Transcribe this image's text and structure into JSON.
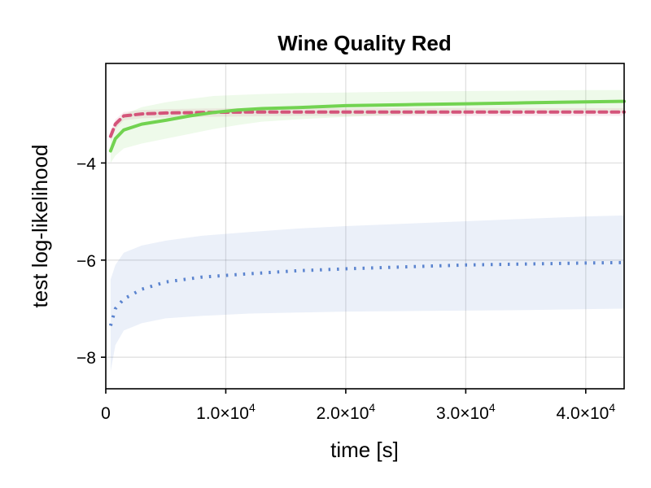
{
  "chart_data": {
    "type": "line",
    "title": "Wine Quality Red",
    "xlabel": "time [s]",
    "ylabel": "test log-likelihood",
    "xlim": [
      0,
      43200
    ],
    "ylim": [
      -8.65,
      -1.95
    ],
    "x_ticks": [
      0,
      10000,
      20000,
      30000,
      40000
    ],
    "x_tick_labels": [
      {
        "mantissa": "0",
        "exponent": ""
      },
      {
        "mantissa": "1.0×10",
        "exponent": "4"
      },
      {
        "mantissa": "2.0×10",
        "exponent": "4"
      },
      {
        "mantissa": "3.0×10",
        "exponent": "4"
      },
      {
        "mantissa": "4.0×10",
        "exponent": "4"
      }
    ],
    "y_ticks": [
      -8,
      -6,
      -4
    ],
    "y_tick_labels": [
      "−8",
      "−6",
      "−4"
    ],
    "grid": true,
    "legend": false,
    "series": [
      {
        "style": "dotted",
        "color": "#5b84cf",
        "band_color": "#5b84cf",
        "x": [
          400,
          800,
          1500,
          3000,
          5000,
          8000,
          12000,
          16000,
          20000,
          25000,
          30000,
          35000,
          40000,
          43200
        ],
        "y": [
          -7.35,
          -7.0,
          -6.8,
          -6.6,
          -6.45,
          -6.35,
          -6.28,
          -6.22,
          -6.18,
          -6.14,
          -6.1,
          -6.08,
          -6.06,
          -6.05
        ],
        "lower": [
          -8.3,
          -7.75,
          -7.45,
          -7.3,
          -7.2,
          -7.15,
          -7.1,
          -7.08,
          -7.06,
          -7.05,
          -7.04,
          -7.03,
          -7.01,
          -7.0
        ],
        "upper": [
          -6.4,
          -6.1,
          -5.85,
          -5.7,
          -5.6,
          -5.5,
          -5.42,
          -5.35,
          -5.3,
          -5.25,
          -5.2,
          -5.15,
          -5.1,
          -5.08
        ]
      },
      {
        "style": "dashed",
        "color": "#d4547a",
        "band_color": "#d4547a",
        "x": [
          400,
          800,
          1500,
          3000,
          5000,
          8000,
          12000,
          16000,
          20000,
          25000,
          30000,
          35000,
          40000,
          43200
        ],
        "y": [
          -3.45,
          -3.2,
          -3.03,
          -2.99,
          -2.97,
          -2.96,
          -2.95,
          -2.95,
          -2.95,
          -2.95,
          -2.95,
          -2.95,
          -2.95,
          -2.95
        ],
        "lower": [
          -3.55,
          -3.3,
          -3.12,
          -3.08,
          -3.06,
          -3.05,
          -3.04,
          -3.03,
          -3.03,
          -3.03,
          -3.03,
          -3.03,
          -3.03,
          -3.03
        ],
        "upper": [
          -3.35,
          -3.1,
          -2.95,
          -2.91,
          -2.89,
          -2.88,
          -2.87,
          -2.87,
          -2.87,
          -2.87,
          -2.87,
          -2.87,
          -2.87,
          -2.87
        ]
      },
      {
        "style": "solid",
        "color": "#72d351",
        "band_color": "#72d351",
        "x": [
          400,
          800,
          1500,
          3000,
          5000,
          7000,
          9000,
          11000,
          13000,
          16000,
          20000,
          25000,
          30000,
          35000,
          40000,
          43200
        ],
        "y": [
          -3.75,
          -3.5,
          -3.32,
          -3.2,
          -3.12,
          -3.03,
          -2.96,
          -2.91,
          -2.88,
          -2.86,
          -2.82,
          -2.8,
          -2.78,
          -2.76,
          -2.74,
          -2.73
        ],
        "lower": [
          -4.0,
          -3.85,
          -3.7,
          -3.6,
          -3.5,
          -3.4,
          -3.3,
          -3.22,
          -3.15,
          -3.1,
          -3.05,
          -3.0,
          -2.98,
          -2.96,
          -2.95,
          -2.95
        ],
        "upper": [
          -3.5,
          -3.25,
          -3.0,
          -2.85,
          -2.75,
          -2.68,
          -2.62,
          -2.6,
          -2.58,
          -2.56,
          -2.55,
          -2.53,
          -2.52,
          -2.51,
          -2.5,
          -2.5
        ]
      }
    ]
  }
}
